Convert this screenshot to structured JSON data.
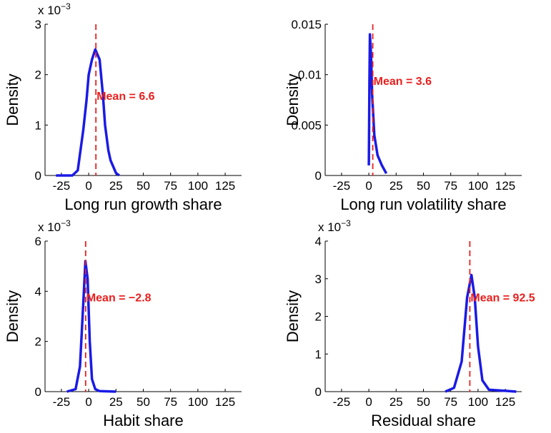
{
  "chart_data": [
    {
      "type": "line",
      "xlabel": "Long run growth share",
      "ylabel": "Density",
      "y_multiplier": {
        "base": "x 10",
        "exponent": "−3"
      },
      "xlim": [
        -40,
        140
      ],
      "xticks": [
        -25,
        0,
        25,
        50,
        75,
        100,
        125
      ],
      "ylim": [
        0,
        3
      ],
      "yticks": [
        0,
        1,
        2,
        3
      ],
      "x": [
        -30,
        -15,
        -10,
        -5,
        -2,
        0,
        3,
        6,
        10,
        13,
        15,
        18,
        20,
        25,
        28
      ],
      "values": [
        0,
        0,
        0.1,
        0.9,
        1.5,
        2.0,
        2.3,
        2.5,
        2.3,
        1.6,
        1.0,
        0.5,
        0.3,
        0.05,
        0
      ],
      "color": "#1a1ae6",
      "mean": 6.6,
      "annotation": "Mean = 6.6",
      "mean_color": "#e8201e"
    },
    {
      "type": "line",
      "xlabel": "Long run volatility share",
      "ylabel": "Density",
      "xlim": [
        -40,
        140
      ],
      "xticks": [
        -25,
        0,
        25,
        50,
        75,
        100,
        125
      ],
      "ylim": [
        0,
        0.015
      ],
      "yticks": [
        0,
        0.005,
        0.01,
        0.015
      ],
      "x": [
        0,
        0.5,
        1,
        2,
        3,
        5,
        8,
        12,
        16
      ],
      "values": [
        0.001,
        0.009,
        0.014,
        0.012,
        0.008,
        0.004,
        0.002,
        0.001,
        0.0002
      ],
      "color": "#1a1ae6",
      "mean": 3.6,
      "annotation": "Mean = 3.6",
      "mean_color": "#e8201e"
    },
    {
      "type": "line",
      "xlabel": "Habit share",
      "ylabel": "Density",
      "y_multiplier": {
        "base": "x 10",
        "exponent": "−3"
      },
      "xlim": [
        -40,
        140
      ],
      "xticks": [
        -25,
        0,
        25,
        50,
        75,
        100,
        125
      ],
      "ylim": [
        0,
        6
      ],
      "yticks": [
        0,
        2,
        4,
        6
      ],
      "x": [
        -20,
        -12,
        -8,
        -5,
        -3,
        -1,
        1,
        3,
        6,
        10,
        25
      ],
      "values": [
        0,
        0.1,
        1.0,
        3.5,
        5.2,
        4.5,
        2.0,
        0.5,
        0.1,
        0.02,
        0
      ],
      "color": "#1a1ae6",
      "mean": -2.8,
      "annotation": "Mean = −2.8",
      "mean_color": "#e8201e"
    },
    {
      "type": "line",
      "xlabel": "Residual share",
      "ylabel": "Density",
      "y_multiplier": {
        "base": "x 10",
        "exponent": "−3"
      },
      "xlim": [
        -40,
        140
      ],
      "xticks": [
        -25,
        0,
        25,
        50,
        75,
        100,
        125
      ],
      "ylim": [
        0,
        4
      ],
      "yticks": [
        0,
        1,
        2,
        3,
        4
      ],
      "x": [
        70,
        78,
        85,
        90,
        94,
        97,
        100,
        104,
        110,
        125,
        135
      ],
      "values": [
        0,
        0.1,
        0.8,
        2.5,
        3.1,
        2.5,
        1.2,
        0.3,
        0.05,
        0.02,
        0
      ],
      "color": "#1a1ae6",
      "mean": 92.5,
      "annotation": "Mean = 92.5",
      "mean_color": "#e8201e"
    }
  ]
}
